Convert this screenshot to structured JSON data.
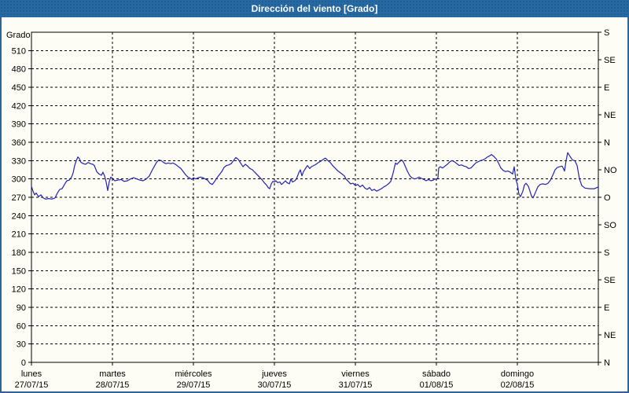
{
  "window": {
    "title": "Dirección del viento [Grado]",
    "title_bar_color": "#2769a2",
    "border_color": "#2e6496",
    "background": "#fdfdf6"
  },
  "chart_data": {
    "type": "line",
    "title": "Dirección del viento [Grado]",
    "grid": "dashed",
    "legend": "none",
    "line_color": "#2222b5",
    "y_axis": {
      "label": "Grado",
      "min": 0,
      "max": 540,
      "tick_step": 30,
      "ticks": [
        0,
        30,
        60,
        90,
        120,
        150,
        180,
        210,
        240,
        270,
        300,
        330,
        360,
        390,
        420,
        450,
        480,
        510
      ]
    },
    "right_axis": {
      "tick_step_deg": 45,
      "labels_top_to_bottom": [
        "S",
        "SE",
        "E",
        "NE",
        "N",
        "NO",
        "O",
        "SO",
        "S",
        "SE",
        "E",
        "NE",
        "N"
      ]
    },
    "x_axis": {
      "unit": "day",
      "days": [
        {
          "name": "lunes",
          "date": "27/07/15"
        },
        {
          "name": "martes",
          "date": "28/07/15"
        },
        {
          "name": "miércoles",
          "date": "29/07/15"
        },
        {
          "name": "jueves",
          "date": "30/07/15"
        },
        {
          "name": "viernes",
          "date": "31/07/15"
        },
        {
          "name": "sábado",
          "date": "01/08/15"
        },
        {
          "name": "domingo",
          "date": "02/08/15"
        }
      ]
    },
    "series": [
      {
        "name": "Dirección del viento",
        "unit": "Grado",
        "points": [
          [
            0.0,
            288
          ],
          [
            0.019,
            280
          ],
          [
            0.039,
            274
          ],
          [
            0.058,
            277
          ],
          [
            0.087,
            271
          ],
          [
            0.117,
            274
          ],
          [
            0.146,
            269
          ],
          [
            0.175,
            267
          ],
          [
            0.214,
            268
          ],
          [
            0.252,
            267
          ],
          [
            0.291,
            269
          ],
          [
            0.32,
            277
          ],
          [
            0.35,
            283
          ],
          [
            0.379,
            284
          ],
          [
            0.408,
            291
          ],
          [
            0.437,
            297
          ],
          [
            0.466,
            298
          ],
          [
            0.495,
            303
          ],
          [
            0.515,
            310
          ],
          [
            0.534,
            322
          ],
          [
            0.553,
            330
          ],
          [
            0.573,
            336
          ],
          [
            0.592,
            333
          ],
          [
            0.612,
            327
          ],
          [
            0.641,
            325
          ],
          [
            0.67,
            324
          ],
          [
            0.699,
            327
          ],
          [
            0.728,
            325
          ],
          [
            0.757,
            324
          ],
          [
            0.777,
            322
          ],
          [
            0.806,
            312
          ],
          [
            0.835,
            308
          ],
          [
            0.864,
            306
          ],
          [
            0.883,
            311
          ],
          [
            0.903,
            305
          ],
          [
            0.922,
            295
          ],
          [
            0.942,
            281
          ],
          [
            0.961,
            296
          ],
          [
            0.981,
            303
          ],
          [
            1.0,
            301
          ],
          [
            1.029,
            297
          ],
          [
            1.068,
            298
          ],
          [
            1.107,
            299
          ],
          [
            1.146,
            296
          ],
          [
            1.184,
            297
          ],
          [
            1.223,
            300
          ],
          [
            1.262,
            302
          ],
          [
            1.301,
            300
          ],
          [
            1.34,
            298
          ],
          [
            1.379,
            297
          ],
          [
            1.417,
            300
          ],
          [
            1.456,
            305
          ],
          [
            1.485,
            313
          ],
          [
            1.515,
            320
          ],
          [
            1.544,
            327
          ],
          [
            1.573,
            331
          ],
          [
            1.602,
            330
          ],
          [
            1.631,
            327
          ],
          [
            1.66,
            325
          ],
          [
            1.689,
            326
          ],
          [
            1.718,
            325
          ],
          [
            1.748,
            326
          ],
          [
            1.777,
            324
          ],
          [
            1.806,
            321
          ],
          [
            1.845,
            317
          ],
          [
            1.874,
            312
          ],
          [
            1.903,
            307
          ],
          [
            1.932,
            303
          ],
          [
            1.961,
            301
          ],
          [
            1.981,
            299
          ],
          [
            2.0,
            302
          ],
          [
            2.029,
            300
          ],
          [
            2.058,
            302
          ],
          [
            2.087,
            303
          ],
          [
            2.117,
            302
          ],
          [
            2.146,
            300
          ],
          [
            2.175,
            298
          ],
          [
            2.204,
            293
          ],
          [
            2.233,
            291
          ],
          [
            2.262,
            296
          ],
          [
            2.291,
            302
          ],
          [
            2.32,
            307
          ],
          [
            2.35,
            312
          ],
          [
            2.379,
            319
          ],
          [
            2.408,
            322
          ],
          [
            2.437,
            323
          ],
          [
            2.466,
            325
          ],
          [
            2.495,
            330
          ],
          [
            2.524,
            335
          ],
          [
            2.553,
            332
          ],
          [
            2.583,
            326
          ],
          [
            2.612,
            320
          ],
          [
            2.641,
            324
          ],
          [
            2.67,
            321
          ],
          [
            2.699,
            317
          ],
          [
            2.728,
            315
          ],
          [
            2.757,
            311
          ],
          [
            2.786,
            307
          ],
          [
            2.816,
            303
          ],
          [
            2.845,
            299
          ],
          [
            2.874,
            294
          ],
          [
            2.903,
            290
          ],
          [
            2.922,
            286
          ],
          [
            2.942,
            284
          ],
          [
            2.961,
            292
          ],
          [
            2.981,
            296
          ],
          [
            3.0,
            295
          ],
          [
            3.019,
            297
          ],
          [
            3.039,
            294
          ],
          [
            3.068,
            295
          ],
          [
            3.087,
            291
          ],
          [
            3.107,
            293
          ],
          [
            3.136,
            297
          ],
          [
            3.155,
            294
          ],
          [
            3.184,
            292
          ],
          [
            3.204,
            300
          ],
          [
            3.223,
            295
          ],
          [
            3.252,
            297
          ],
          [
            3.272,
            300
          ],
          [
            3.301,
            310
          ],
          [
            3.32,
            315
          ],
          [
            3.34,
            305
          ],
          [
            3.359,
            312
          ],
          [
            3.388,
            318
          ],
          [
            3.408,
            322
          ],
          [
            3.437,
            317
          ],
          [
            3.456,
            320
          ],
          [
            3.485,
            322
          ],
          [
            3.515,
            324
          ],
          [
            3.544,
            327
          ],
          [
            3.573,
            329
          ],
          [
            3.602,
            332
          ],
          [
            3.631,
            334
          ],
          [
            3.66,
            330
          ],
          [
            3.689,
            327
          ],
          [
            3.718,
            322
          ],
          [
            3.748,
            318
          ],
          [
            3.777,
            314
          ],
          [
            3.806,
            311
          ],
          [
            3.835,
            308
          ],
          [
            3.864,
            305
          ],
          [
            3.883,
            300
          ],
          [
            3.913,
            296
          ],
          [
            3.942,
            292
          ],
          [
            3.971,
            293
          ],
          [
            4.0,
            289
          ],
          [
            4.029,
            291
          ],
          [
            4.058,
            287
          ],
          [
            4.087,
            290
          ],
          [
            4.117,
            285
          ],
          [
            4.146,
            283
          ],
          [
            4.175,
            286
          ],
          [
            4.204,
            281
          ],
          [
            4.233,
            283
          ],
          [
            4.262,
            280
          ],
          [
            4.291,
            282
          ],
          [
            4.32,
            284
          ],
          [
            4.35,
            287
          ],
          [
            4.379,
            289
          ],
          [
            4.408,
            292
          ],
          [
            4.437,
            296
          ],
          [
            4.456,
            305
          ],
          [
            4.476,
            315
          ],
          [
            4.485,
            321
          ],
          [
            4.495,
            326
          ],
          [
            4.515,
            324
          ],
          [
            4.534,
            327
          ],
          [
            4.553,
            329
          ],
          [
            4.563,
            331
          ],
          [
            4.583,
            330
          ],
          [
            4.602,
            325
          ],
          [
            4.621,
            319
          ],
          [
            4.641,
            313
          ],
          [
            4.66,
            308
          ],
          [
            4.68,
            304
          ],
          [
            4.699,
            302
          ],
          [
            4.728,
            300
          ],
          [
            4.757,
            301
          ],
          [
            4.786,
            303
          ],
          [
            4.816,
            301
          ],
          [
            4.845,
            299
          ],
          [
            4.874,
            297
          ],
          [
            4.903,
            299
          ],
          [
            4.932,
            297
          ],
          [
            4.961,
            298
          ],
          [
            4.981,
            300
          ],
          [
            5.0,
            299
          ],
          [
            5.019,
            302
          ],
          [
            5.029,
            318
          ],
          [
            5.049,
            320
          ],
          [
            5.078,
            318
          ],
          [
            5.107,
            321
          ],
          [
            5.136,
            324
          ],
          [
            5.165,
            328
          ],
          [
            5.194,
            330
          ],
          [
            5.223,
            328
          ],
          [
            5.252,
            325
          ],
          [
            5.282,
            322
          ],
          [
            5.311,
            323
          ],
          [
            5.34,
            321
          ],
          [
            5.369,
            320
          ],
          [
            5.398,
            317
          ],
          [
            5.427,
            318
          ],
          [
            5.456,
            322
          ],
          [
            5.485,
            326
          ],
          [
            5.515,
            328
          ],
          [
            5.544,
            330
          ],
          [
            5.573,
            331
          ],
          [
            5.602,
            333
          ],
          [
            5.631,
            336
          ],
          [
            5.66,
            338
          ],
          [
            5.68,
            340
          ],
          [
            5.709,
            337
          ],
          [
            5.738,
            333
          ],
          [
            5.767,
            326
          ],
          [
            5.796,
            318
          ],
          [
            5.825,
            314
          ],
          [
            5.854,
            312
          ],
          [
            5.883,
            313
          ],
          [
            5.913,
            311
          ],
          [
            5.942,
            308
          ],
          [
            5.961,
            320
          ],
          [
            5.981,
            300
          ],
          [
            6.0,
            291
          ],
          [
            6.019,
            275
          ],
          [
            6.039,
            271
          ],
          [
            6.068,
            280
          ],
          [
            6.087,
            290
          ],
          [
            6.107,
            293
          ],
          [
            6.136,
            288
          ],
          [
            6.155,
            280
          ],
          [
            6.175,
            272
          ],
          [
            6.194,
            269
          ],
          [
            6.223,
            278
          ],
          [
            6.252,
            287
          ],
          [
            6.282,
            291
          ],
          [
            6.311,
            292
          ],
          [
            6.35,
            291
          ],
          [
            6.379,
            293
          ],
          [
            6.408,
            298
          ],
          [
            6.437,
            306
          ],
          [
            6.466,
            315
          ],
          [
            6.495,
            319
          ],
          [
            6.524,
            320
          ],
          [
            6.553,
            321
          ],
          [
            6.583,
            313
          ],
          [
            6.602,
            330
          ],
          [
            6.621,
            343
          ],
          [
            6.65,
            337
          ],
          [
            6.68,
            331
          ],
          [
            6.709,
            330
          ],
          [
            6.738,
            322
          ],
          [
            6.767,
            300
          ],
          [
            6.796,
            289
          ],
          [
            6.835,
            285
          ],
          [
            6.893,
            284
          ],
          [
            6.951,
            284
          ],
          [
            7.0,
            287
          ]
        ]
      }
    ]
  }
}
